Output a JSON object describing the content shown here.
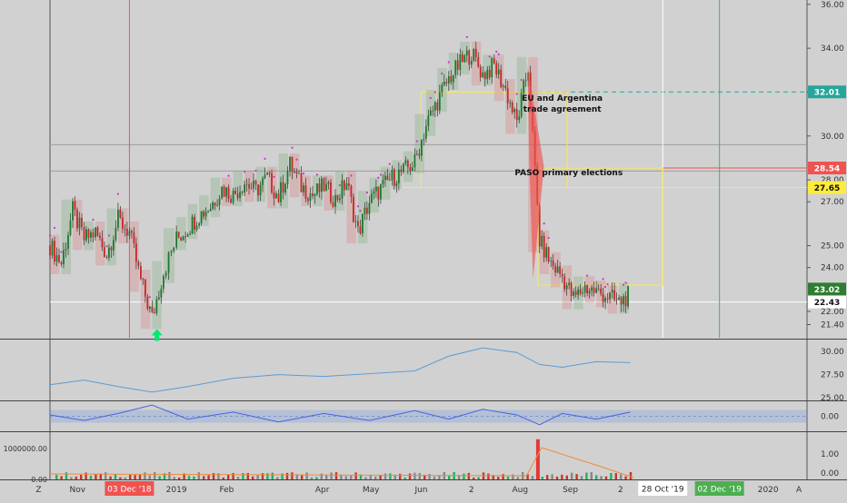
{
  "chart_data": {
    "type": "candlestick",
    "price_axis": {
      "range": [
        20.8,
        36.2
      ],
      "ticks": [
        "36.00",
        "34.00",
        "32.00",
        "30.00",
        "28.00",
        "27.00",
        "25.00",
        "24.00",
        "22.00",
        "21.40"
      ],
      "tick_values": [
        36,
        34,
        32,
        30,
        28,
        27,
        25,
        24,
        22,
        21.4
      ]
    },
    "time_axis": {
      "start": "2018-10-15",
      "end": "2020-01-25",
      "labels": [
        {
          "text": "Z",
          "date": "2018-10-08"
        },
        {
          "text": "Nov",
          "date": "2018-11-01"
        },
        {
          "text": "2019",
          "date": "2019-01-01"
        },
        {
          "text": "Feb",
          "date": "2019-02-01"
        },
        {
          "text": "Apr",
          "date": "2019-04-01"
        },
        {
          "text": "May",
          "date": "2019-05-01"
        },
        {
          "text": "Jun",
          "date": "2019-06-01"
        },
        {
          "text": "2",
          "date": "2019-07-02"
        },
        {
          "text": "Aug",
          "date": "2019-08-01"
        },
        {
          "text": "Sep",
          "date": "2019-09-01"
        },
        {
          "text": "2",
          "date": "2019-10-02"
        },
        {
          "text": "2020",
          "date": "2020-01-01"
        },
        {
          "text": "A",
          "date": "2020-01-20"
        }
      ],
      "date_badges": [
        {
          "text": "03 Dec '18",
          "date": "2018-12-03",
          "color": "#ef5350"
        },
        {
          "text": "28 Oct '19",
          "date": "2019-10-28",
          "color": "#ffffff"
        },
        {
          "text": "02 Dec '19",
          "date": "2019-12-02",
          "color": "#4caf50"
        }
      ]
    },
    "price_badges": [
      {
        "text": "32.01",
        "value": 32.01,
        "color": "#26a69a"
      },
      {
        "text": "28.54",
        "value": 28.54,
        "color": "#ef5350"
      },
      {
        "text": "27.65",
        "value": 27.65,
        "color": "#ffeb3b"
      },
      {
        "text": "23.02",
        "value": 23.02,
        "color": "#2e7d32"
      },
      {
        "text": "22.43",
        "value": 22.43,
        "color": "#ffffff"
      }
    ],
    "annotations": [
      {
        "text": "EU and Argentina",
        "date": "2019-08-27",
        "value": 31.6
      },
      {
        "text": "trade agreement",
        "date": "2019-08-27",
        "value": 31.1
      },
      {
        "text": "PASO primary elections",
        "date": "2019-08-31",
        "value": 28.2
      }
    ],
    "vertical_lines": [
      {
        "date": "2018-12-03",
        "color": "#ef5350"
      },
      {
        "date": "2019-10-28",
        "color": "#ffffff"
      },
      {
        "date": "2019-12-02",
        "color": "#4caf50"
      }
    ],
    "horizontal_lines": [
      {
        "value": 32.01,
        "color": "#26a69a",
        "dashed": true,
        "from": "2019-08-02"
      },
      {
        "value": 28.54,
        "color": "#ef5350",
        "dashed": false,
        "from": "2019-08-12"
      },
      {
        "value": 27.65,
        "color": "#ffeb3b",
        "dashed": false,
        "from": "2019-05-20"
      },
      {
        "value": 22.43,
        "color": "#ffffff",
        "dashed": false,
        "from": "2018-10-15"
      },
      {
        "value": 29.6,
        "color": "#9e9e9e",
        "dashed": false,
        "from": "2018-10-15"
      },
      {
        "value": 28.4,
        "color": "#9e9e9e",
        "dashed": false,
        "from": "2018-10-15"
      }
    ],
    "boxes": [
      {
        "from": "2019-06-01",
        "to": "2019-08-30",
        "top": 32.01,
        "bottom": 27.65,
        "color": "#ffeb3b"
      },
      {
        "from": "2019-08-12",
        "to": "2019-10-28",
        "top": 28.54,
        "bottom": 23.2,
        "color": "#ffeb3b"
      }
    ],
    "drop_marker": {
      "date": "2019-08-09",
      "from": 33.2,
      "to": 23.5,
      "color": "#ef5350"
    },
    "arrow_marker": {
      "date": "2018-12-20",
      "value": 21.2,
      "color": "#00e676"
    },
    "price_series": [
      {
        "date": "2018-10-15",
        "close": 25.0
      },
      {
        "date": "2018-10-22",
        "close": 24.2
      },
      {
        "date": "2018-10-29",
        "close": 26.6
      },
      {
        "date": "2018-11-05",
        "close": 25.3
      },
      {
        "date": "2018-11-12",
        "close": 25.6
      },
      {
        "date": "2018-11-19",
        "close": 24.6
      },
      {
        "date": "2018-11-26",
        "close": 26.2
      },
      {
        "date": "2018-12-03",
        "close": 25.6
      },
      {
        "date": "2018-12-10",
        "close": 23.4
      },
      {
        "date": "2018-12-17",
        "close": 21.7
      },
      {
        "date": "2018-12-24",
        "close": 23.8
      },
      {
        "date": "2019-01-01",
        "close": 25.3
      },
      {
        "date": "2019-01-08",
        "close": 25.8
      },
      {
        "date": "2019-01-15",
        "close": 26.4
      },
      {
        "date": "2019-01-22",
        "close": 26.8
      },
      {
        "date": "2019-01-29",
        "close": 27.6
      },
      {
        "date": "2019-02-05",
        "close": 27.3
      },
      {
        "date": "2019-02-12",
        "close": 27.9
      },
      {
        "date": "2019-02-19",
        "close": 27.5
      },
      {
        "date": "2019-02-26",
        "close": 28.1
      },
      {
        "date": "2019-03-05",
        "close": 27.2
      },
      {
        "date": "2019-03-12",
        "close": 28.7
      },
      {
        "date": "2019-03-19",
        "close": 27.7
      },
      {
        "date": "2019-03-26",
        "close": 27.3
      },
      {
        "date": "2019-04-02",
        "close": 27.7
      },
      {
        "date": "2019-04-09",
        "close": 27.1
      },
      {
        "date": "2019-04-16",
        "close": 27.9
      },
      {
        "date": "2019-04-23",
        "close": 25.6
      },
      {
        "date": "2019-04-30",
        "close": 27.0
      },
      {
        "date": "2019-05-07",
        "close": 27.6
      },
      {
        "date": "2019-05-14",
        "close": 28.1
      },
      {
        "date": "2019-05-21",
        "close": 28.4
      },
      {
        "date": "2019-05-28",
        "close": 28.8
      },
      {
        "date": "2019-06-04",
        "close": 30.5
      },
      {
        "date": "2019-06-11",
        "close": 31.6
      },
      {
        "date": "2019-06-18",
        "close": 32.6
      },
      {
        "date": "2019-06-25",
        "close": 33.3
      },
      {
        "date": "2019-07-02",
        "close": 33.8
      },
      {
        "date": "2019-07-09",
        "close": 32.8
      },
      {
        "date": "2019-07-16",
        "close": 33.2
      },
      {
        "date": "2019-07-23",
        "close": 32.1
      },
      {
        "date": "2019-07-30",
        "close": 30.6
      },
      {
        "date": "2019-08-06",
        "close": 33.1
      },
      {
        "date": "2019-08-13",
        "close": 25.2
      },
      {
        "date": "2019-08-20",
        "close": 24.2
      },
      {
        "date": "2019-08-27",
        "close": 23.6
      },
      {
        "date": "2019-09-03",
        "close": 22.6
      },
      {
        "date": "2019-09-10",
        "close": 23.1
      },
      {
        "date": "2019-09-17",
        "close": 22.9
      },
      {
        "date": "2019-09-24",
        "close": 22.7
      },
      {
        "date": "2019-10-01",
        "close": 22.4
      },
      {
        "date": "2019-10-08",
        "close": 22.8
      }
    ],
    "pane2": {
      "ticks": [
        "30.00",
        "27.50",
        "25.00"
      ],
      "tick_values": [
        30,
        27.5,
        25
      ],
      "range": [
        24.8,
        31.2
      ],
      "color": "#5b9bd5",
      "series": [
        {
          "date": "2018-10-15",
          "value": 26.4
        },
        {
          "date": "2018-11-05",
          "value": 26.9
        },
        {
          "date": "2018-11-26",
          "value": 26.2
        },
        {
          "date": "2018-12-17",
          "value": 25.6
        },
        {
          "date": "2019-01-08",
          "value": 26.2
        },
        {
          "date": "2019-02-05",
          "value": 27.1
        },
        {
          "date": "2019-03-05",
          "value": 27.5
        },
        {
          "date": "2019-04-02",
          "value": 27.3
        },
        {
          "date": "2019-04-30",
          "value": 27.6
        },
        {
          "date": "2019-05-28",
          "value": 27.9
        },
        {
          "date": "2019-06-18",
          "value": 29.5
        },
        {
          "date": "2019-07-09",
          "value": 30.4
        },
        {
          "date": "2019-07-30",
          "value": 29.9
        },
        {
          "date": "2019-08-13",
          "value": 28.6
        },
        {
          "date": "2019-08-27",
          "value": 28.3
        },
        {
          "date": "2019-09-17",
          "value": 28.9
        },
        {
          "date": "2019-10-08",
          "value": 28.8
        }
      ]
    },
    "pane3": {
      "ticks": [
        "0.00"
      ],
      "tick_values": [
        0
      ],
      "range": [
        -1,
        1
      ],
      "band": [
        -0.45,
        0.45
      ],
      "color": "#4466dd",
      "series": [
        {
          "date": "2018-10-15",
          "value": 0.1
        },
        {
          "date": "2018-11-05",
          "value": -0.3
        },
        {
          "date": "2018-11-26",
          "value": 0.2
        },
        {
          "date": "2018-12-17",
          "value": 0.8
        },
        {
          "date": "2019-01-08",
          "value": -0.2
        },
        {
          "date": "2019-02-05",
          "value": 0.3
        },
        {
          "date": "2019-03-05",
          "value": -0.4
        },
        {
          "date": "2019-04-02",
          "value": 0.2
        },
        {
          "date": "2019-04-30",
          "value": -0.3
        },
        {
          "date": "2019-05-28",
          "value": 0.4
        },
        {
          "date": "2019-06-18",
          "value": -0.2
        },
        {
          "date": "2019-07-09",
          "value": 0.5
        },
        {
          "date": "2019-07-30",
          "value": 0.1
        },
        {
          "date": "2019-08-13",
          "value": -0.6
        },
        {
          "date": "2019-08-27",
          "value": 0.2
        },
        {
          "date": "2019-09-17",
          "value": -0.2
        },
        {
          "date": "2019-10-08",
          "value": 0.3
        }
      ]
    },
    "pane4": {
      "left_ticks": [
        "1000000.00",
        "0.00"
      ],
      "left_tick_values": [
        1000000,
        0
      ],
      "right_ticks": [
        "1.00",
        "0.00"
      ],
      "right_tick_values": [
        1.0,
        0
      ],
      "range": [
        0,
        1500000
      ],
      "spike": {
        "date": "2019-08-12",
        "value": 1300000
      },
      "line_color": "#ef8a3c"
    }
  }
}
